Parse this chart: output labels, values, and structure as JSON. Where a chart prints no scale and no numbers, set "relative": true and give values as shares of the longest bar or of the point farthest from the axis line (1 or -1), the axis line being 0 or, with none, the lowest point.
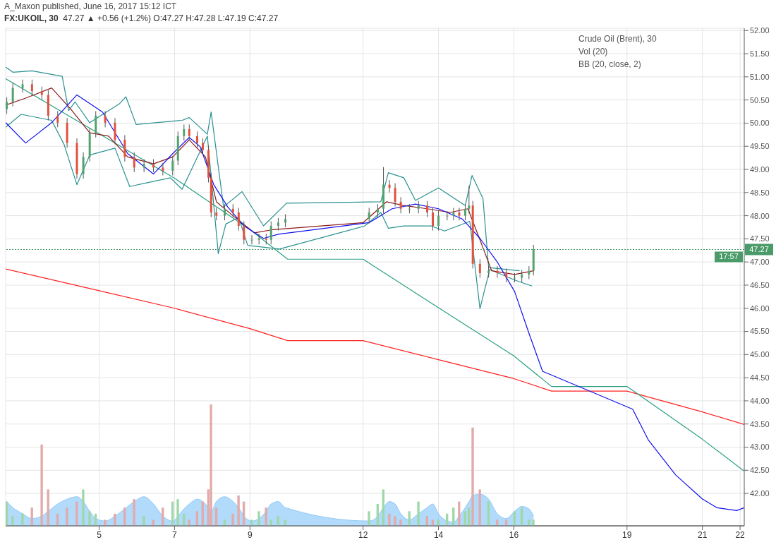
{
  "chart_data": [
    {
      "type": "candlestick",
      "title": "FX:UKOIL, 30",
      "subtitle": "47.27 ▲ +0.56 (+1.2%) O:47.27 H:47.28 L:47.19 C:47.27",
      "annotations": [
        "A_Maxon published, June 16, 2017 15:12 ICT",
        "Crude Oil (Brent), 30",
        "Vol (20)",
        "BB (20, close, 2)",
        "17:57"
      ],
      "xlim": [
        2.52,
        22.11
      ],
      "xticks": [
        5,
        7,
        9,
        12,
        14,
        16,
        19,
        21,
        22
      ],
      "ylim": [
        41.3,
        52.05
      ],
      "yticks": [
        {
          "value": 42,
          "label": "42.00"
        },
        {
          "value": 42.5,
          "label": "42.50"
        },
        {
          "value": 43,
          "label": "43.00"
        },
        {
          "value": 43.5,
          "label": "43.50"
        },
        {
          "value": 44,
          "label": "44.00"
        },
        {
          "value": 44.5,
          "label": "44.50"
        },
        {
          "value": 45,
          "label": "45.00"
        },
        {
          "value": 45.5,
          "label": "45.50"
        },
        {
          "value": 46,
          "label": "46.00"
        },
        {
          "value": 46.5,
          "label": "46.50"
        },
        {
          "value": 47,
          "label": "47.00"
        },
        {
          "value": 47.5,
          "label": "47.50"
        },
        {
          "value": 48,
          "label": "48.00"
        },
        {
          "value": 48.5,
          "label": "48.50"
        },
        {
          "value": 49,
          "label": "49.00"
        },
        {
          "value": 49.5,
          "label": "49.50"
        },
        {
          "value": 50,
          "label": "50.00"
        },
        {
          "value": 50.5,
          "label": "50.50"
        },
        {
          "value": 51,
          "label": "51.00"
        },
        {
          "value": 51.5,
          "label": "51.50"
        },
        {
          "value": 52,
          "label": "52.00"
        }
      ],
      "grid": true,
      "ref_lines": [
        {
          "axis": "y",
          "value": 47.27,
          "label": "47.27",
          "color": "#4a9a6a",
          "line_style": "dotted"
        }
      ],
      "series": [
        {
          "type": "line",
          "color": "#ff2020",
          "x": [
            2.52,
            5,
            7,
            9,
            10,
            12,
            14,
            16,
            17,
            19,
            21,
            22.11
          ],
          "values": [
            46.85,
            46.38,
            46.0,
            45.56,
            45.3,
            45.3,
            44.89,
            44.48,
            44.21,
            44.21,
            43.76,
            43.49
          ]
        },
        {
          "type": "line",
          "color": "#2aa084",
          "x": [
            2.52,
            5,
            7,
            9,
            10,
            12,
            14,
            16,
            17,
            19,
            21,
            22.11
          ],
          "values": [
            50.96,
            49.77,
            48.81,
            47.7,
            47.06,
            47.06,
            46.01,
            44.97,
            44.31,
            44.31,
            43.17,
            42.48
          ]
        },
        {
          "type": "line",
          "color": "#2a9090",
          "x": [
            2.52,
            2.71,
            3.22,
            4.02,
            4.19,
            4.36,
            4.75,
            5.54,
            5.71,
            5.98,
            7.2,
            7.39,
            7.87,
            7.97,
            8.3,
            8.79,
            9.36,
            9.97,
            12.47,
            12.67,
            13.08,
            13.39,
            14.0,
            14.71,
            14.89,
            15.18,
            15.33,
            16.15
          ],
          "values": [
            51.21,
            51.1,
            51.13,
            51.01,
            50.27,
            50.46,
            50.01,
            50.42,
            50.57,
            49.97,
            50.06,
            50.12,
            49.76,
            50.24,
            48.19,
            48.52,
            47.78,
            48.27,
            48.3,
            48.93,
            48.82,
            48.33,
            48.6,
            48.22,
            48.87,
            48.37,
            46.88,
            46.81
          ]
        },
        {
          "type": "line",
          "color": "#2a9090",
          "x": [
            2.52,
            2.93,
            3.74,
            4.07,
            4.41,
            4.75,
            5.42,
            5.81,
            6.32,
            6.89,
            7.2,
            7.87,
            8.16,
            8.36,
            8.7,
            8.94,
            9.78,
            12.05,
            12.47,
            12.67,
            13.08,
            13.8,
            14.16,
            14.52,
            14.83,
            15.1,
            15.36,
            16.02,
            16.48
          ],
          "values": [
            49.91,
            50.19,
            50.06,
            49.54,
            48.67,
            49.31,
            49.46,
            48.63,
            48.72,
            48.82,
            48.57,
            49.72,
            47.18,
            47.82,
            47.96,
            47.36,
            47.28,
            47.78,
            48.07,
            47.73,
            47.78,
            47.78,
            47.67,
            47.78,
            47.88,
            45.99,
            46.84,
            46.61,
            46.48
          ]
        },
        {
          "type": "line",
          "color": "#8b1a1a",
          "x": [
            2.52,
            3.05,
            3.74,
            4.24,
            4.75,
            5.25,
            5.76,
            6.44,
            6.95,
            7.39,
            7.82,
            8.11,
            8.55,
            9.12,
            9.62,
            12.0,
            12.62,
            13.08,
            13.7,
            14.31,
            14.78,
            15.1,
            15.41,
            16.02,
            16.52
          ],
          "values": [
            50.39,
            50.54,
            50.76,
            50.31,
            49.79,
            49.72,
            49.27,
            49.12,
            49.27,
            49.64,
            49.27,
            48.3,
            48.0,
            47.63,
            47.7,
            47.85,
            48.3,
            48.22,
            48.15,
            48.07,
            48.15,
            47.48,
            46.81,
            46.73,
            46.81
          ]
        },
        {
          "type": "line",
          "color": "#1010ee",
          "x": [
            2.52,
            3.05,
            3.74,
            4.41,
            5.09,
            5.76,
            6.44,
            6.95,
            7.39,
            7.68,
            8.04,
            8.41,
            8.84,
            9.36,
            9.75,
            12.16,
            12.77,
            13.39,
            14.0,
            14.63,
            15.1,
            15.56,
            16.02,
            16.4,
            16.76,
            19.15,
            19.57,
            20.29,
            21.0,
            21.39,
            21.91,
            22.11
          ],
          "values": [
            50.01,
            49.57,
            50.01,
            50.61,
            50.24,
            49.34,
            48.9,
            49.34,
            49.69,
            49.49,
            48.67,
            48.19,
            47.78,
            47.51,
            47.6,
            47.85,
            48.15,
            48.25,
            48.15,
            47.93,
            47.51,
            47.0,
            46.36,
            45.46,
            44.64,
            43.82,
            43.15,
            42.4,
            41.88,
            41.69,
            41.63,
            41.69
          ]
        },
        {
          "type": "candlestick",
          "x": [
            2.55,
            2.71,
            2.97,
            3.22,
            3.48,
            3.65,
            3.9,
            4.15,
            4.41,
            4.58,
            4.75,
            4.91,
            5.16,
            5.42,
            5.68,
            5.93,
            6.19,
            6.44,
            6.69,
            6.95,
            7.09,
            7.25,
            7.39,
            7.6,
            7.75,
            7.9,
            7.97,
            8.11,
            8.33,
            8.55,
            8.7,
            8.84,
            9.05,
            9.24,
            9.43,
            9.56,
            9.75,
            9.94,
            12.16,
            12.39,
            12.54,
            12.7,
            12.85,
            13.0,
            13.23,
            13.47,
            13.7,
            13.85,
            14.0,
            14.23,
            14.4,
            14.55,
            14.71,
            14.81,
            14.91,
            15.1,
            15.33,
            15.56,
            15.8,
            16.02,
            16.21,
            16.4,
            16.52
          ],
          "ohlc": [
            [
              50.3,
              50.56,
              50.2,
              50.46
            ],
            [
              50.46,
              50.86,
              50.36,
              50.76
            ],
            [
              50.76,
              50.94,
              50.66,
              50.84
            ],
            [
              50.84,
              50.94,
              50.59,
              50.69
            ],
            [
              50.69,
              50.79,
              50.51,
              50.61
            ],
            [
              50.61,
              50.71,
              50.06,
              50.16
            ],
            [
              50.16,
              50.26,
              49.91,
              50.01
            ],
            [
              50.01,
              50.11,
              49.47,
              49.57
            ],
            [
              49.57,
              49.67,
              48.8,
              48.9
            ],
            [
              48.9,
              49.37,
              48.8,
              49.27
            ],
            [
              49.27,
              49.89,
              49.17,
              49.79
            ],
            [
              49.79,
              50.26,
              49.69,
              50.16
            ],
            [
              50.16,
              50.26,
              49.91,
              50.01
            ],
            [
              50.01,
              50.11,
              49.54,
              49.64
            ],
            [
              49.64,
              49.74,
              49.17,
              49.27
            ],
            [
              49.27,
              49.37,
              48.94,
              49.04
            ],
            [
              49.04,
              49.22,
              48.94,
              49.12
            ],
            [
              49.12,
              49.22,
              48.94,
              49.04
            ],
            [
              49.04,
              49.14,
              48.87,
              48.97
            ],
            [
              48.97,
              49.29,
              48.87,
              49.19
            ],
            [
              49.19,
              49.82,
              49.09,
              49.72
            ],
            [
              49.72,
              49.97,
              49.62,
              49.87
            ],
            [
              49.87,
              49.97,
              49.62,
              49.72
            ],
            [
              49.72,
              49.82,
              49.47,
              49.57
            ],
            [
              49.57,
              49.67,
              49.32,
              49.42
            ],
            [
              49.42,
              49.52,
              48.72,
              48.82
            ],
            [
              48.82,
              48.92,
              47.97,
              48.07
            ],
            [
              48.07,
              48.17,
              47.9,
              48.0
            ],
            [
              48.0,
              48.25,
              47.9,
              48.15
            ],
            [
              48.15,
              48.25,
              47.97,
              48.07
            ],
            [
              48.07,
              48.17,
              47.68,
              47.78
            ],
            [
              47.78,
              47.88,
              47.38,
              47.48
            ],
            [
              47.48,
              47.58,
              47.38,
              47.48
            ],
            [
              47.48,
              47.61,
              47.38,
              47.51
            ],
            [
              47.51,
              47.61,
              47.38,
              47.48
            ],
            [
              47.48,
              47.88,
              47.38,
              47.78
            ],
            [
              47.78,
              47.95,
              47.68,
              47.85
            ],
            [
              47.85,
              48.03,
              47.75,
              47.93
            ],
            [
              47.93,
              48.17,
              47.83,
              48.07
            ],
            [
              48.07,
              48.25,
              47.97,
              48.15
            ],
            [
              48.15,
              49.05,
              48.05,
              48.67
            ],
            [
              48.67,
              48.77,
              48.5,
              48.6
            ],
            [
              48.6,
              48.7,
              48.2,
              48.3
            ],
            [
              48.3,
              48.4,
              48.05,
              48.15
            ],
            [
              48.15,
              48.25,
              48.05,
              48.15
            ],
            [
              48.15,
              48.32,
              48.05,
              48.22
            ],
            [
              48.22,
              48.32,
              47.97,
              48.07
            ],
            [
              48.07,
              48.17,
              47.68,
              47.78
            ],
            [
              47.78,
              48.1,
              47.68,
              48.0
            ],
            [
              48.0,
              48.1,
              47.9,
              48.0
            ],
            [
              48.0,
              48.17,
              47.9,
              48.07
            ],
            [
              48.07,
              48.17,
              47.9,
              48.0
            ],
            [
              48.0,
              48.25,
              47.9,
              48.15
            ],
            [
              48.15,
              48.65,
              48.05,
              48.22
            ],
            [
              48.22,
              48.32,
              46.86,
              46.96
            ],
            [
              46.96,
              47.06,
              46.66,
              46.76
            ],
            [
              46.76,
              46.91,
              46.66,
              46.81
            ],
            [
              46.81,
              46.91,
              46.66,
              46.76
            ],
            [
              46.76,
              46.86,
              46.56,
              46.66
            ],
            [
              46.66,
              46.76,
              46.56,
              46.66
            ],
            [
              46.66,
              46.83,
              46.56,
              46.73
            ],
            [
              46.73,
              46.91,
              46.63,
              46.81
            ],
            [
              46.81,
              47.37,
              46.71,
              47.27
            ]
          ],
          "colors": [
            "#53a26f",
            "#53a26f",
            "#53a26f",
            "#e0533f",
            "#e0533f",
            "#e0533f",
            "#e0533f",
            "#e0533f",
            "#e0533f",
            "#53a26f",
            "#53a26f",
            "#53a26f",
            "#e0533f",
            "#e0533f",
            "#e0533f",
            "#e0533f",
            "#53a26f",
            "#e0533f",
            "#e0533f",
            "#53a26f",
            "#53a26f",
            "#53a26f",
            "#e0533f",
            "#e0533f",
            "#e0533f",
            "#e0533f",
            "#e0533f",
            "#e0533f",
            "#53a26f",
            "#e0533f",
            "#e0533f",
            "#e0533f",
            "#53a26f",
            "#53a26f",
            "#e0533f",
            "#53a26f",
            "#53a26f",
            "#53a26f",
            "#53a26f",
            "#53a26f",
            "#53a26f",
            "#e0533f",
            "#e0533f",
            "#e0533f",
            "#53a26f",
            "#53a26f",
            "#e0533f",
            "#e0533f",
            "#53a26f",
            "#53a26f",
            "#53a26f",
            "#e0533f",
            "#53a26f",
            "#53a26f",
            "#e0533f",
            "#e0533f",
            "#53a26f",
            "#e0533f",
            "#e0533f",
            "#53a26f",
            "#53a26f",
            "#53a26f",
            "#53a26f"
          ]
        }
      ]
    },
    {
      "type": "bar",
      "relative": true,
      "tick_labels": false,
      "xlim": [
        2.52,
        22.11
      ],
      "xticks": [
        5,
        7,
        9,
        12,
        14,
        16,
        19,
        21,
        22
      ],
      "x": [
        2.55,
        2.71,
        2.97,
        3.22,
        3.48,
        3.65,
        3.9,
        4.15,
        4.41,
        4.58,
        4.75,
        4.91,
        5.16,
        5.42,
        5.68,
        5.93,
        6.19,
        6.44,
        6.69,
        6.95,
        7.09,
        7.25,
        7.39,
        7.6,
        7.75,
        7.9,
        7.97,
        8.11,
        8.33,
        8.55,
        8.7,
        8.84,
        9.05,
        9.24,
        9.43,
        9.56,
        9.75,
        9.94,
        12.16,
        12.39,
        12.54,
        12.7,
        12.85,
        13.0,
        13.23,
        13.47,
        13.7,
        13.85,
        14.0,
        14.23,
        14.4,
        14.55,
        14.71,
        14.81,
        14.91,
        15.1,
        15.33,
        15.56,
        15.8,
        16.02,
        16.21,
        16.4,
        16.52
      ],
      "series": [
        {
          "type": "area",
          "color": "#90caf9",
          "values": [
            0.2,
            0.15,
            0.1,
            0.06,
            0.08,
            0.12,
            0.18,
            0.22,
            0.24,
            0.2,
            0.12,
            0.06,
            0.04,
            0.08,
            0.14,
            0.2,
            0.24,
            0.18,
            0.08,
            0.04,
            0.08,
            0.14,
            0.18,
            0.22,
            0.2,
            0.15,
            0.12,
            0.2,
            0.24,
            0.2,
            0.15,
            0.08,
            0.04,
            0.06,
            0.12,
            0.18,
            0.2,
            0.15,
            0.04,
            0.08,
            0.15,
            0.2,
            0.18,
            0.1,
            0.05,
            0.1,
            0.15,
            0.18,
            0.1,
            0.04,
            0.03,
            0.08,
            0.15,
            0.2,
            0.25,
            0.26,
            0.22,
            0.1,
            0.06,
            0.12,
            0.16,
            0.14,
            0.08
          ]
        },
        {
          "type": "bar",
          "values": [
            0.2,
            0.08,
            0.1,
            0.15,
            0.67,
            0.3,
            0.1,
            0.15,
            0.2,
            0.3,
            0.12,
            0.1,
            0.05,
            0.1,
            0.15,
            0.22,
            0.08,
            0.05,
            0.15,
            0.2,
            0.22,
            0.1,
            0.05,
            0.12,
            0.2,
            0.3,
            1,
            0.15,
            0.05,
            0.1,
            0.25,
            0.2,
            0.05,
            0.12,
            0.15,
            0.05,
            0.08,
            0.05,
            0.12,
            0.18,
            0.3,
            0.1,
            0.08,
            0.05,
            0.12,
            0.2,
            0.08,
            0.05,
            0.05,
            0.1,
            0.15,
            0.2,
            0.12,
            0.15,
            0.81,
            0.3,
            0.2,
            0.05,
            0.05,
            0.12,
            0.15,
            0.05,
            0.05
          ],
          "colors": [
            "#9fd8a8",
            "#9fd8a8",
            "#9fd8a8",
            "#e2aaaa",
            "#e2aaaa",
            "#e2aaaa",
            "#e2aaaa",
            "#e2aaaa",
            "#e2aaaa",
            "#9fd8a8",
            "#9fd8a8",
            "#9fd8a8",
            "#e2aaaa",
            "#e2aaaa",
            "#e2aaaa",
            "#e2aaaa",
            "#9fd8a8",
            "#e2aaaa",
            "#e2aaaa",
            "#9fd8a8",
            "#9fd8a8",
            "#9fd8a8",
            "#e2aaaa",
            "#e2aaaa",
            "#e2aaaa",
            "#e2aaaa",
            "#e2aaaa",
            "#e2aaaa",
            "#9fd8a8",
            "#e2aaaa",
            "#e2aaaa",
            "#e2aaaa",
            "#9fd8a8",
            "#9fd8a8",
            "#e2aaaa",
            "#9fd8a8",
            "#9fd8a8",
            "#9fd8a8",
            "#9fd8a8",
            "#9fd8a8",
            "#9fd8a8",
            "#e2aaaa",
            "#e2aaaa",
            "#e2aaaa",
            "#9fd8a8",
            "#9fd8a8",
            "#e2aaaa",
            "#e2aaaa",
            "#9fd8a8",
            "#9fd8a8",
            "#9fd8a8",
            "#e2aaaa",
            "#9fd8a8",
            "#9fd8a8",
            "#e2aaaa",
            "#e2aaaa",
            "#9fd8a8",
            "#e2aaaa",
            "#e2aaaa",
            "#9fd8a8",
            "#9fd8a8",
            "#9fd8a8",
            "#9fd8a8"
          ]
        }
      ]
    }
  ]
}
